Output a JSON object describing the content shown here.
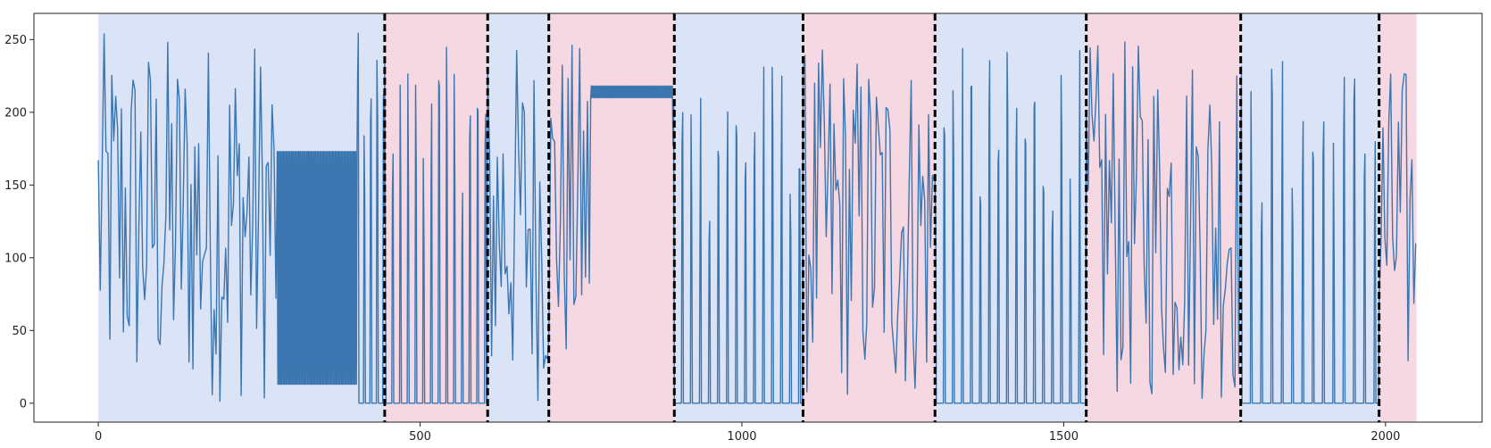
{
  "chart_data": {
    "type": "line",
    "title": "",
    "xlabel": "",
    "ylabel": "",
    "xlim": [
      -100,
      2150
    ],
    "ylim": [
      -13,
      268
    ],
    "xticks": [
      0,
      500,
      1000,
      1500,
      2000
    ],
    "yticks": [
      0,
      50,
      100,
      150,
      200,
      250
    ],
    "grid": false,
    "legend": "none",
    "colors": {
      "line": "#3b76b0",
      "segment_a": "#dbe4f7",
      "segment_b": "#f5d8e1",
      "changepoint": "#000000"
    },
    "segments": [
      {
        "start": 0,
        "end": 445,
        "group": "a"
      },
      {
        "start": 445,
        "end": 605,
        "group": "b"
      },
      {
        "start": 605,
        "end": 700,
        "group": "a"
      },
      {
        "start": 700,
        "end": 895,
        "group": "b"
      },
      {
        "start": 895,
        "end": 1095,
        "group": "a"
      },
      {
        "start": 1095,
        "end": 1300,
        "group": "b"
      },
      {
        "start": 1300,
        "end": 1535,
        "group": "a"
      },
      {
        "start": 1535,
        "end": 1775,
        "group": "b"
      },
      {
        "start": 1775,
        "end": 1990,
        "group": "a"
      },
      {
        "start": 1990,
        "end": 2048,
        "group": "b"
      }
    ],
    "changepoints": [
      445,
      605,
      700,
      895,
      1095,
      1300,
      1535,
      1775,
      1990
    ],
    "series_regimes": [
      {
        "start": 0,
        "end": 278,
        "pattern": "random",
        "min": 0,
        "max": 255,
        "step": 3
      },
      {
        "start": 278,
        "end": 403,
        "pattern": "band",
        "low": 13,
        "high": 173
      },
      {
        "start": 403,
        "end": 445,
        "pattern": "spikes",
        "low": 0,
        "high": 255,
        "period": 10
      },
      {
        "start": 445,
        "end": 605,
        "pattern": "spikes",
        "low": 0,
        "high": 245,
        "period": 12
      },
      {
        "start": 605,
        "end": 700,
        "pattern": "random",
        "min": 0,
        "max": 250,
        "step": 3
      },
      {
        "start": 700,
        "end": 765,
        "pattern": "random",
        "min": 15,
        "max": 250,
        "step": 3
      },
      {
        "start": 765,
        "end": 893,
        "pattern": "band",
        "low": 210,
        "high": 218
      },
      {
        "start": 893,
        "end": 1095,
        "pattern": "spikes",
        "low": 0,
        "high": 240,
        "period": 14
      },
      {
        "start": 1095,
        "end": 1300,
        "pattern": "random",
        "min": 0,
        "max": 245,
        "step": 3
      },
      {
        "start": 1300,
        "end": 1535,
        "pattern": "spikes",
        "low": 0,
        "high": 245,
        "period": 14
      },
      {
        "start": 1535,
        "end": 1775,
        "pattern": "random",
        "min": 0,
        "max": 250,
        "step": 3
      },
      {
        "start": 1775,
        "end": 1990,
        "pattern": "spikes",
        "low": 0,
        "high": 240,
        "period": 16
      },
      {
        "start": 1990,
        "end": 2048,
        "pattern": "random",
        "min": 0,
        "max": 235,
        "step": 3
      }
    ]
  }
}
